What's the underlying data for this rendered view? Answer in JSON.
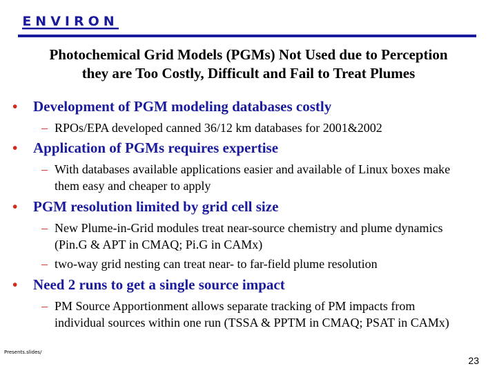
{
  "header": {
    "logo_text": "ENVIRON",
    "title_line1": "Photochemical Grid Models (PGMs) Not Used due to Perception",
    "title_line2": "they are Too Costly, Difficult and Fail to Treat Plumes"
  },
  "colors": {
    "heading_blue": "#1a1a9c",
    "bullet_red": "#d12a1e",
    "rule_blue": "#1a1a9c"
  },
  "bullets": [
    {
      "marker": "•",
      "text": "Development of PGM modeling databases costly",
      "subs": [
        {
          "marker": "–",
          "text": "RPOs/EPA developed canned 36/12 km databases for 2001&2002"
        }
      ]
    },
    {
      "marker": "•",
      "text": "Application of PGMs requires expertise",
      "subs": [
        {
          "marker": "–",
          "text": "With databases available applications easier and available of Linux boxes make them easy and cheaper to apply"
        }
      ]
    },
    {
      "marker": "•",
      "text": "PGM resolution limited by grid cell size",
      "subs": [
        {
          "marker": "–",
          "text": "New Plume-in-Grid modules treat near-source chemistry and plume dynamics (Pin.G & APT in CMAQ; Pi.G in CAMx)"
        },
        {
          "marker": "–",
          "text": "two-way grid nesting can treat near- to far-field plume resolution"
        }
      ]
    },
    {
      "marker": "•",
      "text": "Need 2 runs to get a single source impact",
      "subs": [
        {
          "marker": "–",
          "text": "PM Source Apportionment allows separate tracking of PM impacts from individual sources within one run (TSSA & PPTM in CMAQ; PSAT in CAMx)"
        }
      ]
    }
  ],
  "footer": {
    "path": "Presents.slides/",
    "page_number": "23"
  }
}
